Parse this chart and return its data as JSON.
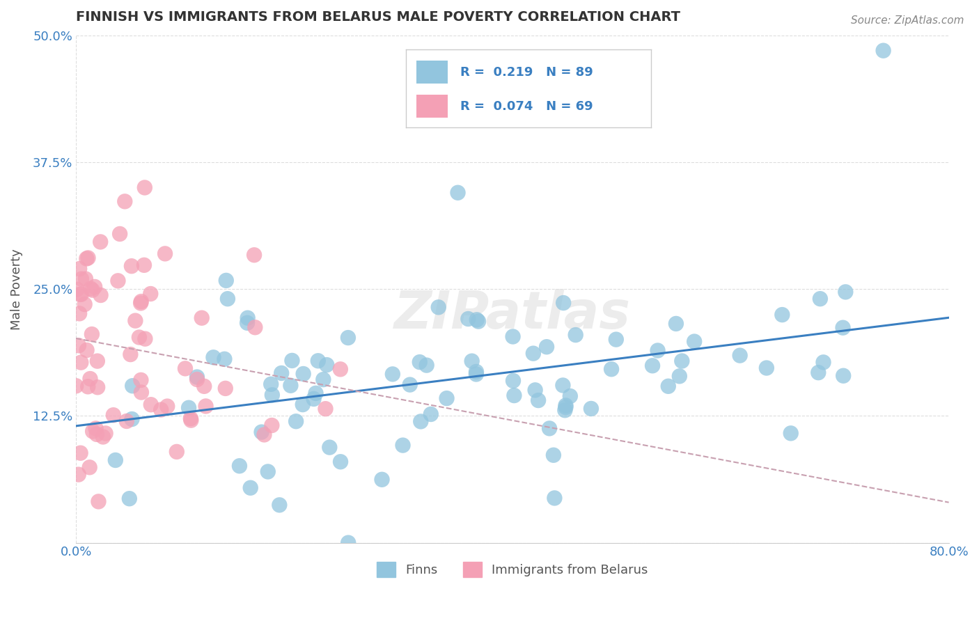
{
  "title": "FINNISH VS IMMIGRANTS FROM BELARUS MALE POVERTY CORRELATION CHART",
  "source": "Source: ZipAtlas.com",
  "ylabel": "Male Poverty",
  "x_min": 0.0,
  "x_max": 0.8,
  "y_min": 0.0,
  "y_max": 0.5,
  "y_ticks": [
    0.0,
    0.125,
    0.25,
    0.375,
    0.5
  ],
  "y_tick_labels": [
    "",
    "12.5%",
    "25.0%",
    "37.5%",
    "50.0%"
  ],
  "legend_labels": [
    "Finns",
    "Immigrants from Belarus"
  ],
  "r_finns": 0.219,
  "n_finns": 89,
  "r_belarus": 0.074,
  "n_belarus": 69,
  "color_finns": "#92C5DE",
  "color_belarus": "#F4A0B5",
  "trend_color_finns": "#3A7FC1",
  "trend_color_belarus": "#C8A0B0",
  "watermark": "ZIPatlas",
  "background_color": "#FFFFFF",
  "grid_color": "#DDDDDD",
  "title_color": "#333333",
  "axis_label_color": "#555555",
  "tick_label_color": "#3A7FC1",
  "legend_r_color": "#3A7FC1"
}
